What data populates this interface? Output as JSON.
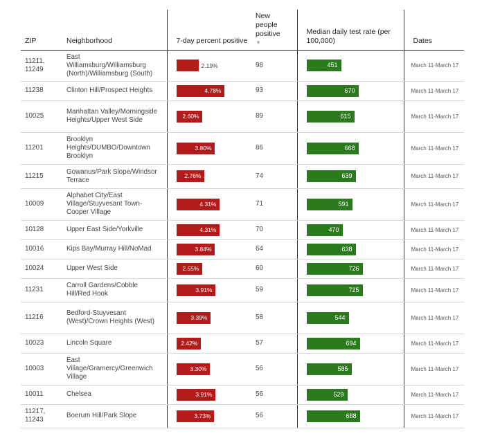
{
  "headers": {
    "zip": "ZIP",
    "neighborhood": "Neighborhood",
    "positive": "7-day percent positive",
    "new_people": "New people positive",
    "sort_arrow": "▼",
    "test_rate": "Median daily test rate (per 100,000)",
    "dates": "Dates"
  },
  "colors": {
    "positive_bar": "#b31b1b",
    "test_rate_bar": "#2b7a1e"
  },
  "chart_data": {
    "type": "table",
    "columns": [
      "ZIP",
      "Neighborhood",
      "7-day percent positive",
      "New people positive",
      "Median daily test rate (per 100,000)",
      "Dates"
    ],
    "rows": [
      {
        "zip": "11211, 11249",
        "neighborhood": "East Williamsburg/Williamsburg (North)/Williamsburg (South)",
        "pct": 2.19,
        "pct_label": "2.19%",
        "new_positive": 98,
        "test_rate": 451,
        "dates": "March 11-March 17"
      },
      {
        "zip": "11238",
        "neighborhood": "Clinton Hill/Prospect Heights",
        "pct": 4.78,
        "pct_label": "4.78%",
        "new_positive": 93,
        "test_rate": 670,
        "dates": "March 11-March 17"
      },
      {
        "zip": "10025",
        "neighborhood": "Manhattan Valley/Morningside Heights/Upper West Side",
        "pct": 2.6,
        "pct_label": "2.60%",
        "new_positive": 89,
        "test_rate": 615,
        "dates": "March 11-March 17"
      },
      {
        "zip": "11201",
        "neighborhood": "Brooklyn Heights/DUMBO/Downtown Brooklyn",
        "pct": 3.8,
        "pct_label": "3.80%",
        "new_positive": 86,
        "test_rate": 668,
        "dates": "March 11-March 17"
      },
      {
        "zip": "11215",
        "neighborhood": "Gowanus/Park Slope/Windsor Terrace",
        "pct": 2.76,
        "pct_label": "2.76%",
        "new_positive": 74,
        "test_rate": 639,
        "dates": "March 11-March 17"
      },
      {
        "zip": "10009",
        "neighborhood": "Alphabet City/East Village/Stuyvesant Town-Cooper Village",
        "pct": 4.31,
        "pct_label": "4.31%",
        "new_positive": 71,
        "test_rate": 591,
        "dates": "March 11-March 17"
      },
      {
        "zip": "10128",
        "neighborhood": "Upper East Side/Yorkville",
        "pct": 4.31,
        "pct_label": "4.31%",
        "new_positive": 70,
        "test_rate": 470,
        "dates": "March 11-March 17"
      },
      {
        "zip": "10016",
        "neighborhood": "Kips Bay/Murray Hill/NoMad",
        "pct": 3.84,
        "pct_label": "3.84%",
        "new_positive": 64,
        "test_rate": 638,
        "dates": "March 11-March 17"
      },
      {
        "zip": "10024",
        "neighborhood": "Upper West Side",
        "pct": 2.55,
        "pct_label": "2.55%",
        "new_positive": 60,
        "test_rate": 726,
        "dates": "March 11-March 17"
      },
      {
        "zip": "11231",
        "neighborhood": "Carroll Gardens/Cobble Hill/Red Hook",
        "pct": 3.91,
        "pct_label": "3.91%",
        "new_positive": 59,
        "test_rate": 725,
        "dates": "March 11-March 17"
      },
      {
        "zip": "11216",
        "neighborhood": "Bedford-Stuyvesant (West)/Crown Heights (West)",
        "pct": 3.39,
        "pct_label": "3.39%",
        "new_positive": 58,
        "test_rate": 544,
        "dates": "March 11-March 17"
      },
      {
        "zip": "10023",
        "neighborhood": "Lincoln Square",
        "pct": 2.42,
        "pct_label": "2.42%",
        "new_positive": 57,
        "test_rate": 694,
        "dates": "March 11-March 17"
      },
      {
        "zip": "10003",
        "neighborhood": "East Village/Gramercy/Greenwich Village",
        "pct": 3.3,
        "pct_label": "3.30%",
        "new_positive": 56,
        "test_rate": 585,
        "dates": "March 11-March 17"
      },
      {
        "zip": "10011",
        "neighborhood": "Chelsea",
        "pct": 3.91,
        "pct_label": "3.91%",
        "new_positive": 56,
        "test_rate": 529,
        "dates": "March 11-March 17"
      },
      {
        "zip": "11217, 11243",
        "neighborhood": "Boerum Hill/Park Slope",
        "pct": 3.73,
        "pct_label": "3.73%",
        "new_positive": 56,
        "test_rate": 688,
        "dates": "March 11-March 17"
      }
    ]
  }
}
